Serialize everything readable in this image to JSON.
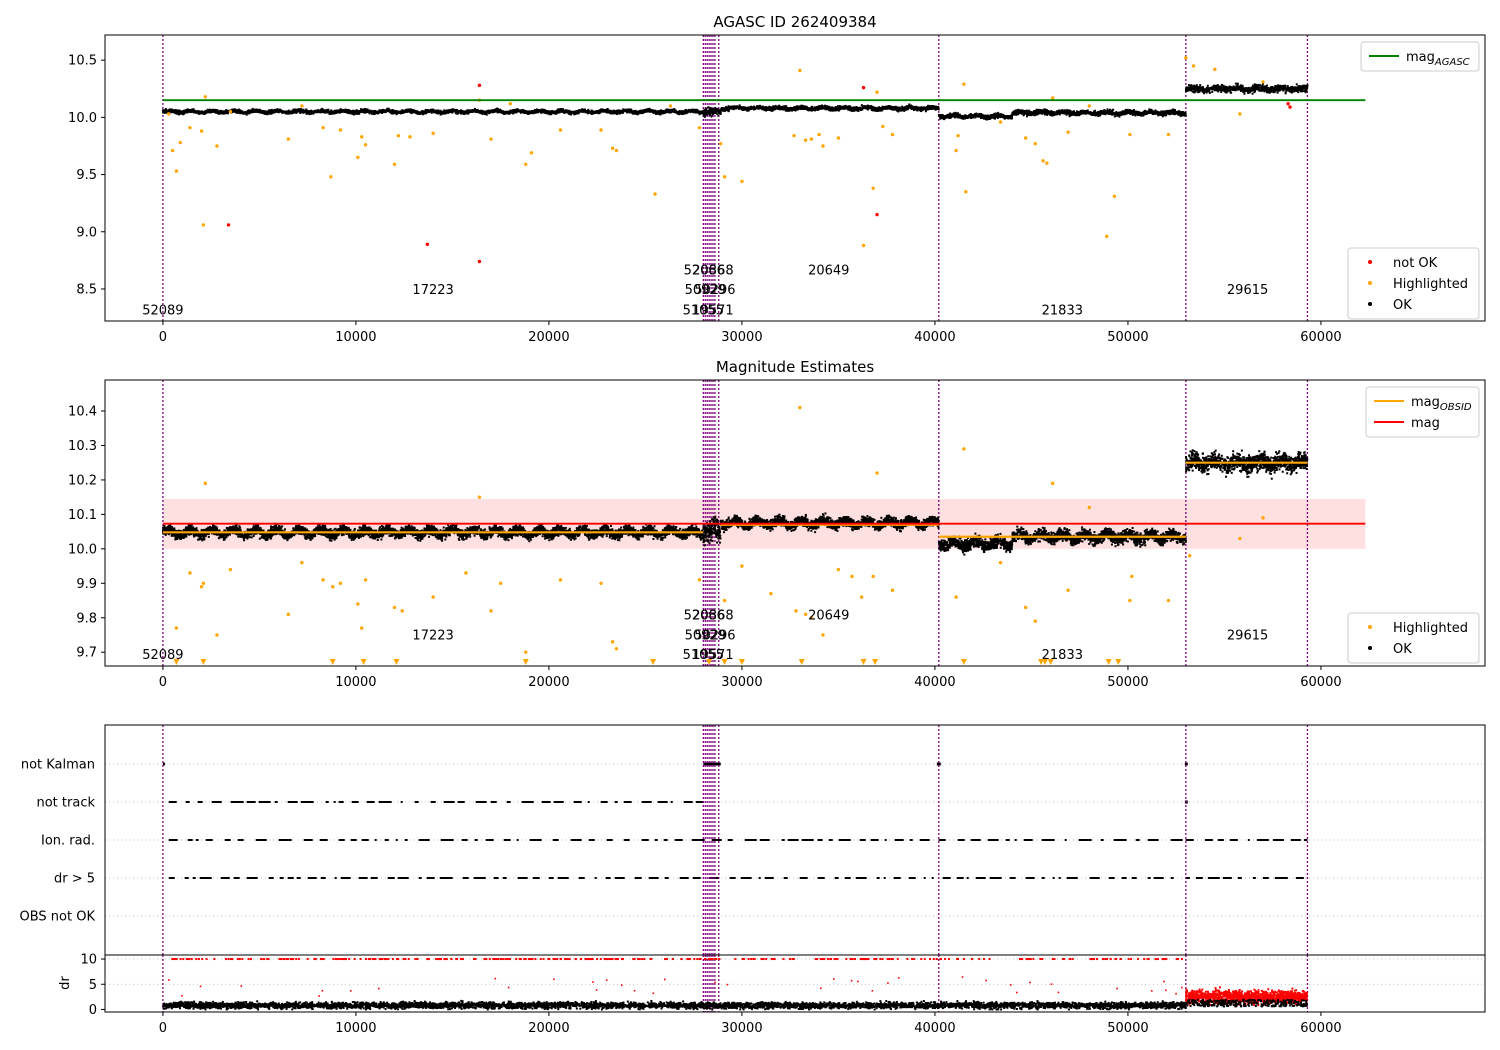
{
  "colors": {
    "ok": "#000000",
    "highlighted": "#ffa500",
    "not_ok": "#ff0000",
    "mag_agasc": "#008000",
    "mag_obsid": "#ffa500",
    "mag": "#ff0000",
    "mag_band": "#ffcccc",
    "obsid_lines": "#800080",
    "grid": "#b0b0b0"
  },
  "chart_data": [
    {
      "type": "scatter",
      "title": "AGASC ID 262409384",
      "xlim": [
        -3000,
        68500
      ],
      "ylim": [
        8.22,
        10.72
      ],
      "x_ticks": [
        0,
        10000,
        20000,
        30000,
        40000,
        50000,
        60000
      ],
      "x_tick_labels": [
        "0",
        "10000",
        "20000",
        "30000",
        "40000",
        "50000",
        "60000"
      ],
      "y_ticks": [
        8.5,
        9.0,
        9.5,
        10.0,
        10.5
      ],
      "y_tick_labels": [
        "8.5",
        "9.0",
        "9.5",
        "10.0",
        "10.5"
      ],
      "legend_top": [
        {
          "label": "mag",
          "sub": "AGASC",
          "kind": "line",
          "color": "#008000"
        }
      ],
      "legend_bottom": [
        {
          "label": "not OK",
          "kind": "dot",
          "color": "#ff0000"
        },
        {
          "label": "Highlighted",
          "kind": "dot",
          "color": "#ffa500"
        },
        {
          "label": "OK",
          "kind": "dot",
          "color": "#000000"
        }
      ],
      "mag_agasc": 10.15,
      "mag_agasc_x": [
        0,
        62300
      ],
      "segments": [
        {
          "x0": 0,
          "x1": 28000,
          "mean": 10.05,
          "spread": 0.025
        },
        {
          "x0": 28000,
          "x1": 28900,
          "mean": 10.05,
          "spread": 0.06
        },
        {
          "x0": 28900,
          "x1": 40200,
          "mean": 10.08,
          "spread": 0.03
        },
        {
          "x0": 40200,
          "x1": 44000,
          "mean": 10.01,
          "spread": 0.03
        },
        {
          "x0": 44000,
          "x1": 53000,
          "mean": 10.04,
          "spread": 0.035
        },
        {
          "x0": 53000,
          "x1": 59300,
          "mean": 10.25,
          "spread": 0.05
        }
      ],
      "highlighted_points": [
        [
          300,
          10.03
        ],
        [
          500,
          9.71
        ],
        [
          700,
          9.53
        ],
        [
          900,
          9.78
        ],
        [
          1400,
          9.91
        ],
        [
          2000,
          9.88
        ],
        [
          2200,
          10.18
        ],
        [
          2100,
          9.06
        ],
        [
          2800,
          9.75
        ],
        [
          3500,
          10.05
        ],
        [
          6500,
          9.81
        ],
        [
          7200,
          10.1
        ],
        [
          8300,
          9.91
        ],
        [
          8700,
          9.48
        ],
        [
          9200,
          9.89
        ],
        [
          10100,
          9.65
        ],
        [
          10300,
          9.83
        ],
        [
          10500,
          9.76
        ],
        [
          12000,
          9.59
        ],
        [
          12200,
          9.84
        ],
        [
          12800,
          9.83
        ],
        [
          14000,
          9.86
        ],
        [
          16400,
          10.15
        ],
        [
          17000,
          9.81
        ],
        [
          18000,
          10.12
        ],
        [
          18800,
          9.59
        ],
        [
          19100,
          9.69
        ],
        [
          20600,
          9.89
        ],
        [
          22700,
          9.89
        ],
        [
          23300,
          9.73
        ],
        [
          23500,
          9.71
        ],
        [
          25500,
          9.33
        ],
        [
          26300,
          10.1
        ],
        [
          27800,
          9.91
        ],
        [
          28900,
          9.77
        ],
        [
          29100,
          9.48
        ],
        [
          30000,
          9.44
        ],
        [
          32700,
          9.84
        ],
        [
          33000,
          10.41
        ],
        [
          33300,
          9.8
        ],
        [
          33600,
          9.81
        ],
        [
          34000,
          9.85
        ],
        [
          34200,
          9.75
        ],
        [
          35000,
          9.82
        ],
        [
          36300,
          8.88
        ],
        [
          36800,
          9.38
        ],
        [
          37000,
          10.22
        ],
        [
          37300,
          9.92
        ],
        [
          37800,
          9.85
        ],
        [
          41100,
          9.71
        ],
        [
          41500,
          10.29
        ],
        [
          41600,
          9.35
        ],
        [
          41200,
          9.84
        ],
        [
          43400,
          9.96
        ],
        [
          44700,
          9.82
        ],
        [
          45200,
          9.77
        ],
        [
          45600,
          9.62
        ],
        [
          45800,
          9.6
        ],
        [
          46100,
          10.17
        ],
        [
          46900,
          9.87
        ],
        [
          48000,
          10.1
        ],
        [
          48900,
          8.96
        ],
        [
          49300,
          9.31
        ],
        [
          50100,
          9.85
        ],
        [
          52100,
          9.85
        ],
        [
          53000,
          10.52
        ],
        [
          53400,
          10.45
        ],
        [
          54500,
          10.42
        ],
        [
          55800,
          10.03
        ],
        [
          57000,
          10.31
        ]
      ],
      "not_ok_points": [
        [
          3400,
          9.06
        ],
        [
          13700,
          8.89
        ],
        [
          16400,
          10.28
        ],
        [
          16400,
          8.74
        ],
        [
          36300,
          10.26
        ],
        [
          37000,
          9.15
        ],
        [
          58300,
          10.12
        ],
        [
          58400,
          10.09
        ]
      ],
      "obsid_lines": [
        0,
        28000,
        28100,
        28200,
        28300,
        28400,
        28500,
        28600,
        28800,
        40200,
        53000,
        59300
      ],
      "obsid_labels": [
        {
          "text": "52089",
          "x": 0,
          "y": 8.32
        },
        {
          "text": "17223",
          "x": 14000,
          "y": 8.5
        },
        {
          "text": "52066",
          "x": 28050,
          "y": 8.67
        },
        {
          "text": "20368",
          "x": 28500,
          "y": 8.67
        },
        {
          "text": "50929",
          "x": 28100,
          "y": 8.5
        },
        {
          "text": "50296",
          "x": 28600,
          "y": 8.5
        },
        {
          "text": "51055",
          "x": 28000,
          "y": 8.32
        },
        {
          "text": "19571",
          "x": 28500,
          "y": 8.32
        },
        {
          "text": "20649",
          "x": 34500,
          "y": 8.67
        },
        {
          "text": "21833",
          "x": 46600,
          "y": 8.32
        },
        {
          "text": "29615",
          "x": 56200,
          "y": 8.5
        }
      ]
    },
    {
      "type": "scatter",
      "title": "Magnitude Estimates",
      "xlim": [
        -3000,
        68500
      ],
      "ylim": [
        9.66,
        10.49
      ],
      "x_ticks": [
        0,
        10000,
        20000,
        30000,
        40000,
        50000,
        60000
      ],
      "x_tick_labels": [
        "0",
        "10000",
        "20000",
        "30000",
        "40000",
        "50000",
        "60000"
      ],
      "y_ticks": [
        9.7,
        9.8,
        9.9,
        10.0,
        10.1,
        10.2,
        10.3,
        10.4
      ],
      "y_tick_labels": [
        "9.7",
        "9.8",
        "9.9",
        "10.0",
        "10.1",
        "10.2",
        "10.3",
        "10.4"
      ],
      "legend_top": [
        {
          "label": "mag",
          "sub": "OBSID",
          "kind": "line",
          "color": "#ffa500"
        },
        {
          "label": "mag",
          "sub": "",
          "kind": "line",
          "color": "#ff0000"
        }
      ],
      "legend_bottom": [
        {
          "label": "Highlighted",
          "kind": "dot",
          "color": "#ffa500"
        },
        {
          "label": "OK",
          "kind": "dot",
          "color": "#000000"
        }
      ],
      "mag": 10.073,
      "mag_band": [
        10.0,
        10.145
      ],
      "mag_x": [
        0,
        62300
      ],
      "obsid_means": [
        {
          "x0": 0,
          "x1": 28000,
          "mean": 10.048
        },
        {
          "x0": 28900,
          "x1": 40200,
          "mean": 10.07
        },
        {
          "x0": 40200,
          "x1": 53000,
          "mean": 10.035
        },
        {
          "x0": 53000,
          "x1": 59300,
          "mean": 10.25
        }
      ],
      "segments": [
        {
          "x0": 0,
          "x1": 28000,
          "mean": 10.048,
          "spread": 0.025
        },
        {
          "x0": 28000,
          "x1": 28900,
          "mean": 10.05,
          "spread": 0.06
        },
        {
          "x0": 28900,
          "x1": 40200,
          "mean": 10.075,
          "spread": 0.025
        },
        {
          "x0": 40200,
          "x1": 44000,
          "mean": 10.015,
          "spread": 0.03
        },
        {
          "x0": 44000,
          "x1": 53000,
          "mean": 10.035,
          "spread": 0.03
        },
        {
          "x0": 53000,
          "x1": 59300,
          "mean": 10.25,
          "spread": 0.045
        }
      ],
      "highlighted_points": [
        [
          700,
          9.77
        ],
        [
          1400,
          9.93
        ],
        [
          2000,
          9.89
        ],
        [
          2100,
          9.9
        ],
        [
          2200,
          10.19
        ],
        [
          2800,
          9.75
        ],
        [
          3500,
          9.94
        ],
        [
          6500,
          9.81
        ],
        [
          7200,
          9.96
        ],
        [
          8300,
          9.91
        ],
        [
          8800,
          9.89
        ],
        [
          9200,
          9.9
        ],
        [
          10100,
          9.84
        ],
        [
          10300,
          9.77
        ],
        [
          10500,
          9.91
        ],
        [
          12000,
          9.83
        ],
        [
          12400,
          9.82
        ],
        [
          14000,
          9.86
        ],
        [
          15700,
          9.93
        ],
        [
          16400,
          10.15
        ],
        [
          17000,
          9.82
        ],
        [
          17500,
          9.9
        ],
        [
          18800,
          9.7
        ],
        [
          20600,
          9.91
        ],
        [
          22700,
          9.9
        ],
        [
          23300,
          9.73
        ],
        [
          23500,
          9.71
        ],
        [
          27800,
          9.91
        ],
        [
          29100,
          9.85
        ],
        [
          30000,
          9.95
        ],
        [
          31500,
          9.87
        ],
        [
          32800,
          9.82
        ],
        [
          33000,
          10.41
        ],
        [
          33300,
          9.81
        ],
        [
          33600,
          9.8
        ],
        [
          34200,
          9.75
        ],
        [
          35000,
          9.94
        ],
        [
          35700,
          9.92
        ],
        [
          36200,
          9.86
        ],
        [
          36800,
          9.92
        ],
        [
          37000,
          10.22
        ],
        [
          37800,
          9.88
        ],
        [
          41100,
          9.86
        ],
        [
          41500,
          10.29
        ],
        [
          43400,
          9.96
        ],
        [
          44700,
          9.83
        ],
        [
          45200,
          9.79
        ],
        [
          46100,
          10.19
        ],
        [
          46900,
          9.88
        ],
        [
          48000,
          10.12
        ],
        [
          50100,
          9.85
        ],
        [
          50200,
          9.92
        ],
        [
          52100,
          9.85
        ],
        [
          53200,
          9.98
        ],
        [
          55800,
          10.03
        ],
        [
          57000,
          10.09
        ]
      ],
      "lower_markers": [
        700,
        2100,
        8800,
        10400,
        12100,
        18800,
        25400,
        28300,
        29100,
        30000,
        33100,
        36300,
        36900,
        41500,
        45500,
        45700,
        46000,
        49000,
        49500
      ],
      "obsid_lines": [
        0,
        28000,
        28100,
        28200,
        28300,
        28400,
        28500,
        28600,
        28800,
        40200,
        53000,
        59300
      ],
      "obsid_labels": [
        {
          "text": "52089",
          "x": 0,
          "y": 9.695
        },
        {
          "text": "17223",
          "x": 14000,
          "y": 9.752
        },
        {
          "text": "52066",
          "x": 28050,
          "y": 9.81
        },
        {
          "text": "20368",
          "x": 28500,
          "y": 9.81
        },
        {
          "text": "50929",
          "x": 28100,
          "y": 9.752
        },
        {
          "text": "50296",
          "x": 28600,
          "y": 9.752
        },
        {
          "text": "51055",
          "x": 28000,
          "y": 9.695
        },
        {
          "text": "19571",
          "x": 28500,
          "y": 9.695
        },
        {
          "text": "20649",
          "x": 34500,
          "y": 9.81
        },
        {
          "text": "21833",
          "x": 46600,
          "y": 9.695
        },
        {
          "text": "29615",
          "x": 56200,
          "y": 9.752
        }
      ]
    },
    {
      "type": "scatter",
      "title": "",
      "xlim": [
        -3000,
        68500
      ],
      "categories": [
        "not Kalman",
        "not track",
        "Ion. rad.",
        "dr > 5",
        "OBS not OK"
      ],
      "flag_patterns": {
        "not Kalman": [
          [
            0,
            100
          ],
          [
            28000,
            28900
          ],
          [
            40100,
            40300
          ],
          [
            52950,
            53100
          ]
        ],
        "not track": [
          [
            300,
            28000
          ],
          [
            52950,
            53100
          ]
        ],
        "Ion. rad.": [
          [
            300,
            53000
          ],
          [
            53000,
            59300
          ]
        ],
        "dr > 5": [
          [
            300,
            53000
          ],
          [
            53000,
            59300
          ]
        ],
        "OBS not OK": []
      },
      "obsid_lines": [
        0,
        28000,
        28100,
        28200,
        28300,
        28400,
        28500,
        28600,
        28800,
        40200,
        53000,
        59300
      ]
    },
    {
      "type": "scatter",
      "title": "",
      "ylabel": "dr",
      "xlim": [
        -3000,
        68500
      ],
      "ylim": [
        -0.5,
        10.8
      ],
      "x_ticks": [
        0,
        10000,
        20000,
        30000,
        40000,
        50000,
        60000
      ],
      "x_tick_labels": [
        "0",
        "10000",
        "20000",
        "30000",
        "40000",
        "50000",
        "60000"
      ],
      "y_ticks": [
        0,
        5,
        10
      ],
      "y_tick_labels": [
        "0",
        "5",
        "10"
      ],
      "ok_band": {
        "x0": 0,
        "x1": 53000,
        "mean": 0.8,
        "spread": 0.6
      },
      "not_ok_band": {
        "x0": 53000,
        "x1": 59300,
        "mean": 2.5,
        "spread": 1.2
      },
      "capped_value": 10,
      "obsid_lines": [
        0,
        28000,
        28100,
        28200,
        28300,
        28400,
        28500,
        28600,
        28800,
        40200,
        53000,
        59300
      ]
    }
  ]
}
